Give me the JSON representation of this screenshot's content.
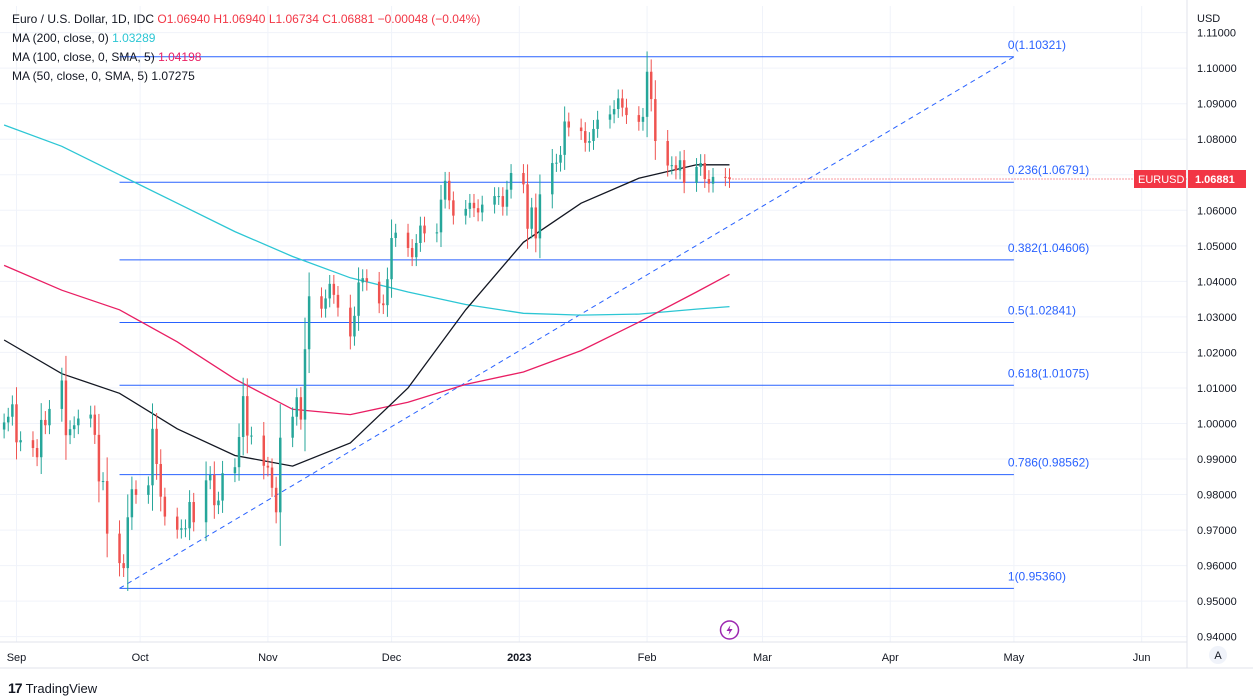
{
  "legend": {
    "symbol": "Euro / U.S. Dollar, 1D, IDC",
    "ohlc": "O1.06940  H1.06940  L1.06734  C1.06881  −0.00048 (−0.04%)",
    "ma200_label": "MA (200, close, 0)",
    "ma200_value": "1.03289",
    "ma100_label": "MA (100, close, 0, SMA, 5)",
    "ma100_value": "1.04198",
    "ma50_label": "MA (50, close, 0, SMA, 5)",
    "ma50_value": "1.07275"
  },
  "brand": {
    "name": "TradingView"
  },
  "price_tag": {
    "symbol": "EURUSD",
    "price": "1.06881",
    "color": "#f23645"
  },
  "auto_scale_label": "A",
  "chart_data": {
    "type": "candlestick",
    "currency_label": "USD",
    "y_range": [
      0.9385,
      1.1175
    ],
    "x_range": [
      "2022-08-28",
      "2023-06-12"
    ],
    "y_ticks": [
      "0.94000",
      "0.95000",
      "0.96000",
      "0.97000",
      "0.98000",
      "0.99000",
      "1.00000",
      "1.01000",
      "1.02000",
      "1.03000",
      "1.04000",
      "1.05000",
      "1.06000",
      "1.07000",
      "1.08000",
      "1.09000",
      "1.10000",
      "1.11000"
    ],
    "x_ticks": [
      {
        "label": "Sep",
        "date": "2022-09-01"
      },
      {
        "label": "Oct",
        "date": "2022-10-01"
      },
      {
        "label": "Nov",
        "date": "2022-11-01"
      },
      {
        "label": "Dec",
        "date": "2022-12-01"
      },
      {
        "label": "2023",
        "date": "2023-01-01"
      },
      {
        "label": "Feb",
        "date": "2023-02-01"
      },
      {
        "label": "Mar",
        "date": "2023-03-01"
      },
      {
        "label": "Apr",
        "date": "2023-04-01"
      },
      {
        "label": "May",
        "date": "2023-05-01"
      },
      {
        "label": "Jun",
        "date": "2023-06-01"
      }
    ],
    "bull_color": "#26a69a",
    "bear_color": "#ef5350",
    "closes": [
      [
        "2022-08-29",
        1.0003
      ],
      [
        "2022-08-30",
        1.0019
      ],
      [
        "2022-08-31",
        1.0054
      ],
      [
        "2022-09-01",
        0.9947
      ],
      [
        "2022-09-02",
        0.9953
      ],
      [
        "2022-09-05",
        0.9931
      ],
      [
        "2022-09-06",
        0.9905
      ],
      [
        "2022-09-07",
        1.001
      ],
      [
        "2022-09-08",
        0.9995
      ],
      [
        "2022-09-09",
        1.0041
      ],
      [
        "2022-09-12",
        1.0121
      ],
      [
        "2022-09-13",
        0.9967
      ],
      [
        "2022-09-14",
        0.9984
      ],
      [
        "2022-09-15",
        0.9995
      ],
      [
        "2022-09-16",
        1.0014
      ],
      [
        "2022-09-19",
        1.0025
      ],
      [
        "2022-09-20",
        0.9968
      ],
      [
        "2022-09-21",
        0.9837
      ],
      [
        "2022-09-22",
        0.9838
      ],
      [
        "2022-09-23",
        0.969
      ],
      [
        "2022-09-26",
        0.9607
      ],
      [
        "2022-09-27",
        0.9593
      ],
      [
        "2022-09-28",
        0.9736
      ],
      [
        "2022-09-29",
        0.9815
      ],
      [
        "2022-09-30",
        0.9799
      ],
      [
        "2022-10-03",
        0.9826
      ],
      [
        "2022-10-04",
        0.9985
      ],
      [
        "2022-10-05",
        0.9886
      ],
      [
        "2022-10-06",
        0.9794
      ],
      [
        "2022-10-07",
        0.9738
      ],
      [
        "2022-10-10",
        0.9701
      ],
      [
        "2022-10-11",
        0.9705
      ],
      [
        "2022-10-12",
        0.9705
      ],
      [
        "2022-10-13",
        0.9779
      ],
      [
        "2022-10-14",
        0.9722
      ],
      [
        "2022-10-17",
        0.984
      ],
      [
        "2022-10-18",
        0.9855
      ],
      [
        "2022-10-19",
        0.977
      ],
      [
        "2022-10-20",
        0.9783
      ],
      [
        "2022-10-21",
        0.986
      ],
      [
        "2022-10-24",
        0.9877
      ],
      [
        "2022-10-25",
        0.9962
      ],
      [
        "2022-10-26",
        1.0077
      ],
      [
        "2022-10-27",
        0.9966
      ],
      [
        "2022-10-28",
        0.9966
      ],
      [
        "2022-10-31",
        0.9881
      ],
      [
        "2022-11-01",
        0.9876
      ],
      [
        "2022-11-02",
        0.9819
      ],
      [
        "2022-11-03",
        0.975
      ],
      [
        "2022-11-04",
        0.996
      ],
      [
        "2022-11-07",
        1.0019
      ],
      [
        "2022-11-08",
        1.0074
      ],
      [
        "2022-11-09",
        1.0011
      ],
      [
        "2022-11-10",
        1.0209
      ],
      [
        "2022-11-11",
        1.0358
      ],
      [
        "2022-11-14",
        1.0323
      ],
      [
        "2022-11-15",
        1.0352
      ],
      [
        "2022-11-16",
        1.0393
      ],
      [
        "2022-11-17",
        1.0362
      ],
      [
        "2022-11-18",
        1.0326
      ],
      [
        "2022-11-21",
        1.0245
      ],
      [
        "2022-11-22",
        1.0303
      ],
      [
        "2022-11-23",
        1.0397
      ],
      [
        "2022-11-24",
        1.0409
      ],
      [
        "2022-11-25",
        1.0399
      ],
      [
        "2022-11-28",
        1.0338
      ],
      [
        "2022-11-29",
        1.0333
      ],
      [
        "2022-11-30",
        1.0406
      ],
      [
        "2022-12-01",
        1.0522
      ],
      [
        "2022-12-02",
        1.0537
      ],
      [
        "2022-12-05",
        1.0494
      ],
      [
        "2022-12-06",
        1.0468
      ],
      [
        "2022-12-07",
        1.0508
      ],
      [
        "2022-12-08",
        1.0557
      ],
      [
        "2022-12-09",
        1.0535
      ],
      [
        "2022-12-12",
        1.0538
      ],
      [
        "2022-12-13",
        1.063
      ],
      [
        "2022-12-14",
        1.0683
      ],
      [
        "2022-12-15",
        1.0628
      ],
      [
        "2022-12-16",
        1.0585
      ],
      [
        "2022-12-19",
        1.0604
      ],
      [
        "2022-12-20",
        1.0621
      ],
      [
        "2022-12-21",
        1.0606
      ],
      [
        "2022-12-22",
        1.0594
      ],
      [
        "2022-12-23",
        1.0616
      ],
      [
        "2022-12-26",
        1.064
      ],
      [
        "2022-12-27",
        1.064
      ],
      [
        "2022-12-28",
        1.061
      ],
      [
        "2022-12-29",
        1.0658
      ],
      [
        "2022-12-30",
        1.0705
      ],
      [
        "2023-01-02",
        1.0673
      ],
      [
        "2023-01-03",
        1.0548
      ],
      [
        "2023-01-04",
        1.0608
      ],
      [
        "2023-01-05",
        1.0521
      ],
      [
        "2023-01-06",
        1.0645
      ],
      [
        "2023-01-09",
        1.0733
      ],
      [
        "2023-01-10",
        1.0734
      ],
      [
        "2023-01-11",
        1.0756
      ],
      [
        "2023-01-12",
        1.085
      ],
      [
        "2023-01-13",
        1.0833
      ],
      [
        "2023-01-16",
        1.0823
      ],
      [
        "2023-01-17",
        1.079
      ],
      [
        "2023-01-18",
        1.0795
      ],
      [
        "2023-01-19",
        1.0829
      ],
      [
        "2023-01-20",
        1.0855
      ],
      [
        "2023-01-23",
        1.087
      ],
      [
        "2023-01-24",
        1.0885
      ],
      [
        "2023-01-25",
        1.0915
      ],
      [
        "2023-01-26",
        1.0889
      ],
      [
        "2023-01-27",
        1.0868
      ],
      [
        "2023-01-30",
        1.0849
      ],
      [
        "2023-01-31",
        1.0863
      ],
      [
        "2023-02-01",
        1.099
      ],
      [
        "2023-02-02",
        1.0913
      ],
      [
        "2023-02-03",
        1.0795
      ],
      [
        "2023-02-06",
        1.0726
      ],
      [
        "2023-02-07",
        1.0727
      ],
      [
        "2023-02-08",
        1.0712
      ],
      [
        "2023-02-09",
        1.0741
      ],
      [
        "2023-02-10",
        1.0677
      ],
      [
        "2023-02-13",
        1.0722
      ],
      [
        "2023-02-14",
        1.0733
      ],
      [
        "2023-02-15",
        1.0688
      ],
      [
        "2023-02-16",
        1.0675
      ],
      [
        "2023-02-17",
        1.0694
      ],
      [
        "2023-02-20",
        1.0693
      ],
      [
        "2023-02-21",
        1.0688
      ]
    ],
    "series": [
      {
        "name": "MA (200, close, 0)",
        "color": "#2cc6d4",
        "points": [
          [
            "2022-08-29",
            1.084
          ],
          [
            "2022-09-12",
            1.078
          ],
          [
            "2022-09-26",
            1.07
          ],
          [
            "2022-10-10",
            1.062
          ],
          [
            "2022-10-24",
            1.054
          ],
          [
            "2022-11-07",
            1.047
          ],
          [
            "2022-11-21",
            1.041
          ],
          [
            "2022-12-05",
            1.037
          ],
          [
            "2022-12-19",
            1.0335
          ],
          [
            "2023-01-02",
            1.031
          ],
          [
            "2023-01-16",
            1.0305
          ],
          [
            "2023-01-30",
            1.0308
          ],
          [
            "2023-02-13",
            1.0322
          ],
          [
            "2023-02-21",
            1.0329
          ]
        ]
      },
      {
        "name": "MA (100, close, 0, SMA, 5)",
        "color": "#e91e63",
        "points": [
          [
            "2022-08-29",
            1.0445
          ],
          [
            "2022-09-12",
            1.0375
          ],
          [
            "2022-09-26",
            1.032
          ],
          [
            "2022-10-10",
            1.023
          ],
          [
            "2022-10-24",
            1.0125
          ],
          [
            "2022-11-07",
            1.004
          ],
          [
            "2022-11-21",
            1.0025
          ],
          [
            "2022-12-05",
            1.006
          ],
          [
            "2022-12-19",
            1.011
          ],
          [
            "2023-01-02",
            1.0145
          ],
          [
            "2023-01-16",
            1.0205
          ],
          [
            "2023-01-30",
            1.0285
          ],
          [
            "2023-02-13",
            1.037
          ],
          [
            "2023-02-21",
            1.042
          ]
        ]
      },
      {
        "name": "MA (50, close, 0, SMA, 5)",
        "color": "#131722",
        "points": [
          [
            "2022-08-29",
            1.0235
          ],
          [
            "2022-09-12",
            1.014
          ],
          [
            "2022-09-26",
            1.0085
          ],
          [
            "2022-10-10",
            0.9985
          ],
          [
            "2022-10-24",
            0.991
          ],
          [
            "2022-11-07",
            0.988
          ],
          [
            "2022-11-21",
            0.9945
          ],
          [
            "2022-12-05",
            1.01
          ],
          [
            "2022-12-19",
            1.032
          ],
          [
            "2023-01-02",
            1.051
          ],
          [
            "2023-01-16",
            1.062
          ],
          [
            "2023-01-30",
            1.069
          ],
          [
            "2023-02-13",
            1.0728
          ],
          [
            "2023-02-21",
            1.0728
          ]
        ]
      }
    ],
    "fibonacci": {
      "color": "#2962ff",
      "start": "2022-09-26",
      "end": "2023-05-01",
      "levels": [
        {
          "ratio": "0",
          "price": 1.10321,
          "label": "0(1.10321)"
        },
        {
          "ratio": "0.236",
          "price": 1.06791,
          "label": "0.236(1.06791)"
        },
        {
          "ratio": "0.382",
          "price": 1.04606,
          "label": "0.382(1.04606)"
        },
        {
          "ratio": "0.5",
          "price": 1.02841,
          "label": "0.5(1.02841)"
        },
        {
          "ratio": "0.618",
          "price": 1.01075,
          "label": "0.618(1.01075)"
        },
        {
          "ratio": "0.786",
          "price": 0.98562,
          "label": "0.786(0.98562)"
        },
        {
          "ratio": "1",
          "price": 0.9536,
          "label": "1(0.95360)"
        }
      ],
      "trend_line": {
        "from": [
          "2022-09-26",
          0.9536
        ],
        "to": [
          "2023-05-01",
          1.1032
        ]
      }
    }
  }
}
